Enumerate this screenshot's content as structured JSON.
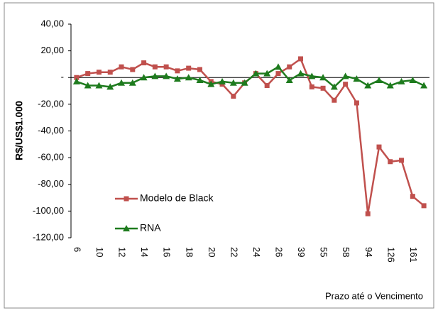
{
  "chart_data": {
    "type": "line",
    "categories": [
      "6",
      null,
      "10",
      null,
      "12",
      null,
      "14",
      null,
      "16",
      null,
      "18",
      null,
      "20",
      null,
      "22",
      null,
      "24",
      null,
      "26",
      null,
      "39",
      null,
      "55",
      null,
      "58",
      null,
      "94",
      null,
      "126",
      null,
      "161",
      null
    ],
    "series": [
      {
        "name": "Modelo de Black",
        "color": "#c0504d",
        "marker": "square",
        "values": [
          0,
          3,
          4,
          4,
          8,
          6,
          11,
          8,
          8,
          5,
          7,
          6,
          -3,
          -5,
          -14,
          -4,
          3,
          -6,
          3,
          8,
          14,
          -7,
          -8,
          -17,
          -5,
          -19,
          -102,
          -52,
          -63,
          -62,
          -89,
          -96
        ]
      },
      {
        "name": "RNA",
        "color": "#1e7b1e",
        "marker": "triangle",
        "values": [
          -3,
          -6,
          -6,
          -7,
          -4,
          -4,
          0,
          1,
          1,
          -1,
          0,
          -2,
          -5,
          -3,
          -4,
          -4,
          3,
          3,
          8,
          -2,
          3,
          1,
          0,
          -7,
          1,
          -1,
          -6,
          -2,
          -6,
          -3,
          -2,
          -6
        ]
      }
    ],
    "ylim": [
      -120,
      40
    ],
    "yticks": [
      {
        "value": -120,
        "label": "-120,00"
      },
      {
        "value": -100,
        "label": "-100,00"
      },
      {
        "value": -80,
        "label": "-80,00"
      },
      {
        "value": -60,
        "label": "-60,00"
      },
      {
        "value": -40,
        "label": "-40,00"
      },
      {
        "value": -20,
        "label": "-20,00"
      },
      {
        "value": 0,
        "label": "-"
      },
      {
        "value": 20,
        "label": "20,00"
      },
      {
        "value": 40,
        "label": "40,00"
      }
    ],
    "y_label": "R$/US$1.000",
    "x_label": "Prazo até o Vencimento",
    "grid": false
  }
}
